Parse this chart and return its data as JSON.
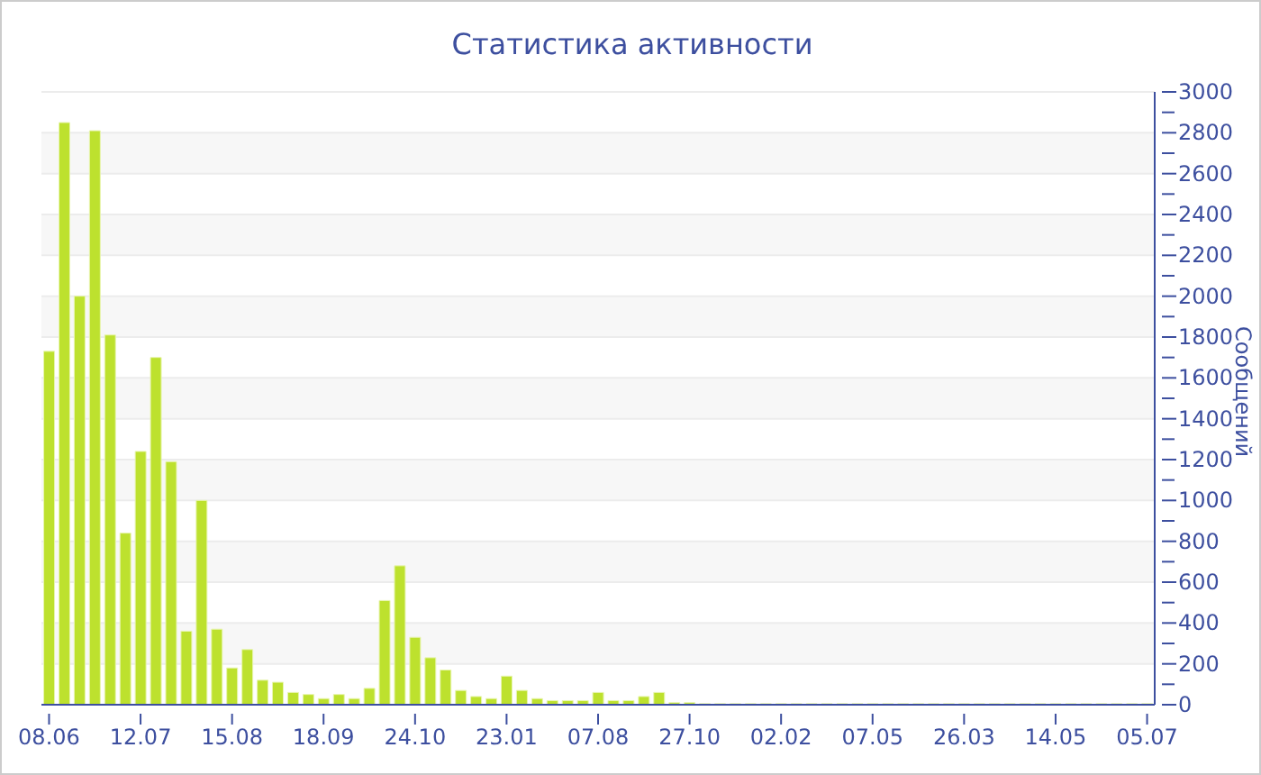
{
  "chart_data": {
    "type": "bar",
    "title": "Статистика активности",
    "ylabel": "Сообщений",
    "categories": [
      "08.06",
      null,
      null,
      null,
      null,
      null,
      "12.07",
      null,
      null,
      null,
      null,
      null,
      "15.08",
      null,
      null,
      null,
      null,
      null,
      "18.09",
      null,
      null,
      null,
      null,
      null,
      "24.10",
      null,
      null,
      null,
      null,
      null,
      "23.01",
      null,
      null,
      null,
      null,
      null,
      "07.08",
      null,
      null,
      null,
      null,
      null,
      "27.10",
      null,
      null,
      null,
      null,
      null,
      "02.02",
      null,
      null,
      null,
      null,
      null,
      "07.05",
      null,
      null,
      null,
      null,
      null,
      "26.03",
      null,
      null,
      null,
      null,
      null,
      "14.05",
      null,
      null,
      null,
      null,
      null,
      "05.07"
    ],
    "values": [
      1730,
      2850,
      2000,
      2810,
      1810,
      840,
      1240,
      1700,
      1190,
      360,
      1000,
      370,
      180,
      270,
      120,
      110,
      60,
      50,
      30,
      50,
      30,
      80,
      510,
      680,
      330,
      230,
      170,
      70,
      40,
      30,
      140,
      70,
      30,
      20,
      20,
      20,
      60,
      20,
      20,
      40,
      60,
      10,
      10,
      5,
      5,
      5,
      5,
      5,
      5,
      5,
      5,
      5,
      5,
      5,
      5,
      5,
      5,
      5,
      5,
      5,
      5,
      5,
      5,
      5,
      5,
      5,
      5,
      5,
      5,
      5,
      5,
      5,
      5
    ],
    "color": "#bde12e",
    "ylim": [
      0,
      3000
    ],
    "yticks": [
      0,
      {
        "value": 100,
        "label": null
      },
      200,
      {
        "value": 300,
        "label": null
      },
      400,
      {
        "value": 500,
        "label": null
      },
      600,
      {
        "value": 700,
        "label": null
      },
      800,
      {
        "value": 900,
        "label": null
      },
      1000,
      {
        "value": 1100,
        "label": null
      },
      1200,
      {
        "value": 1300,
        "label": null
      },
      1400,
      {
        "value": 1500,
        "label": null
      },
      1600,
      {
        "value": 1700,
        "label": null
      },
      1800,
      {
        "value": 1900,
        "label": null
      },
      2000,
      {
        "value": 2100,
        "label": null
      },
      2200,
      {
        "value": 2300,
        "label": null
      },
      2400,
      {
        "value": 2500,
        "label": null
      },
      2600,
      {
        "value": 2700,
        "label": null
      },
      2800,
      {
        "value": 2900,
        "label": null
      },
      3000
    ],
    "grid": "y",
    "legend": false
  }
}
